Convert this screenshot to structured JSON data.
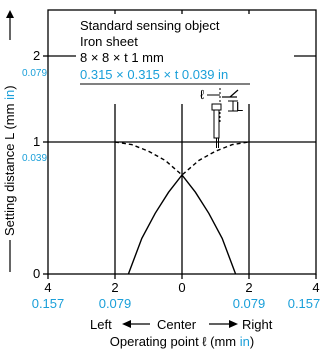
{
  "chart_data": {
    "type": "line",
    "x_ticks_mm": [
      "4",
      "2",
      "0",
      "2",
      "4"
    ],
    "x_ticks_in": [
      "0.157",
      "0.079",
      "0",
      "0.079",
      "0.157"
    ],
    "x_tick_values": [
      -4,
      -2,
      0,
      2,
      4
    ],
    "y_ticks_mm": [
      "0",
      "1",
      "2"
    ],
    "y_ticks_in": [
      "0.039",
      "0.079"
    ],
    "y_tick_values": [
      0,
      1,
      2
    ],
    "xlim": [
      -4,
      4
    ],
    "ylim": [
      0,
      2.4
    ],
    "ylabel_prefix": "Setting distance L (mm ",
    "ylabel_inch": "in",
    "ylabel_suffix": ")",
    "x_direction_left": "Left",
    "x_direction_center": "Center",
    "x_direction_right": "Right",
    "xlabel_prefix": "Operating point ℓ (mm ",
    "xlabel_inch": "in",
    "xlabel_suffix": ")",
    "legend": {
      "line1": "Standard sensing object",
      "line2": "Iron sheet",
      "line3": "8 × 8 × t 1 mm",
      "line4": "0.315 × 0.315 × t 0.039 in"
    },
    "diagram_labels": {
      "ell": "ℓ",
      "L": "L"
    },
    "series": [
      {
        "style": "solid",
        "x": [
          -1.6,
          -1.2,
          -0.8,
          -0.4,
          0.0,
          0.4,
          0.8,
          1.2,
          1.6
        ],
        "y": [
          0.0,
          0.27,
          0.46,
          0.62,
          0.75,
          0.62,
          0.46,
          0.27,
          0.0
        ]
      },
      {
        "style": "dashed",
        "x": [
          -2.0,
          -1.5,
          -1.0,
          -0.5,
          0.0,
          0.5,
          1.0,
          1.5,
          2.0
        ],
        "y": [
          1.0,
          0.98,
          0.93,
          0.86,
          0.75,
          0.86,
          0.93,
          0.98,
          1.0
        ]
      }
    ],
    "grid": true
  }
}
